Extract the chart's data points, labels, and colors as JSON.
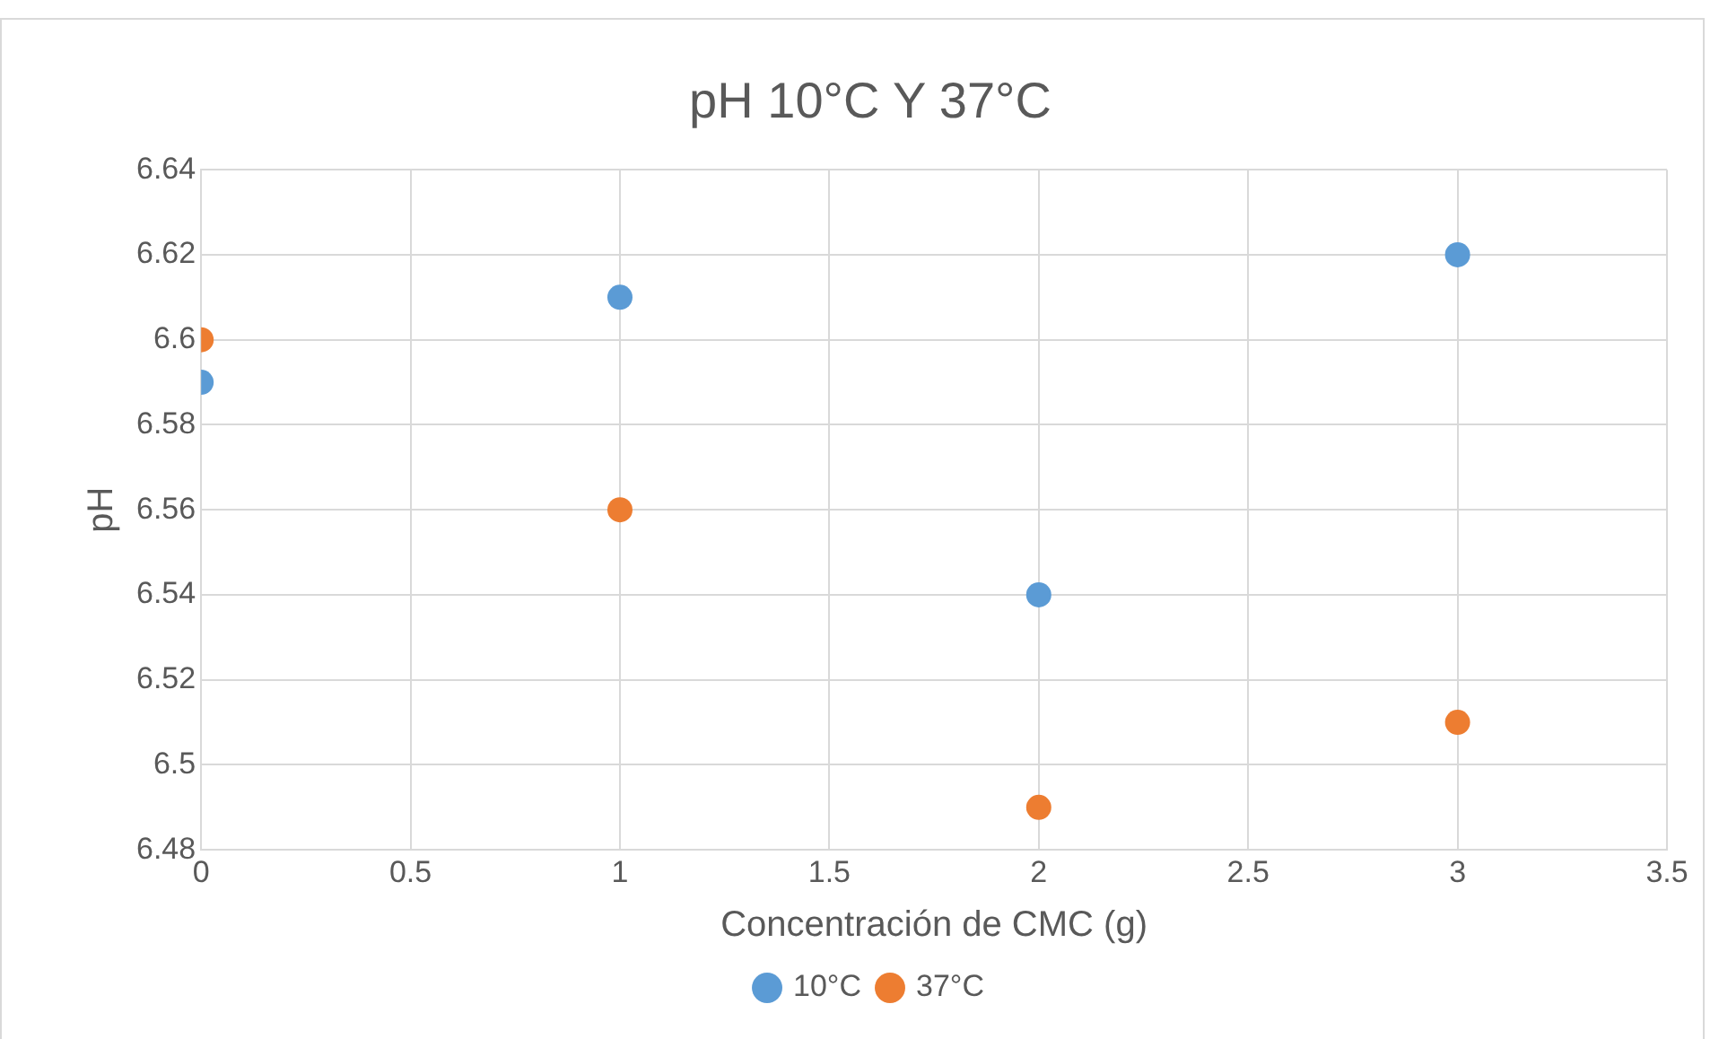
{
  "chart_data": {
    "type": "scatter",
    "title": "pH 10°C Y 37°C",
    "xlabel": "Concentración de CMC (g)",
    "ylabel": "pH",
    "x": [
      0,
      1,
      2,
      3
    ],
    "series": [
      {
        "name": "10°C",
        "color": "#5b9bd5",
        "values": [
          6.59,
          6.61,
          6.54,
          6.62
        ]
      },
      {
        "name": "37°C",
        "color": "#ed7d31",
        "values": [
          6.6,
          6.56,
          6.49,
          6.51
        ]
      }
    ],
    "xlim": [
      0,
      3.5
    ],
    "xticks": [
      0,
      0.5,
      1,
      1.5,
      2,
      2.5,
      3,
      3.5
    ],
    "ylim": [
      6.48,
      6.64
    ],
    "yticks": [
      6.48,
      6.5,
      6.52,
      6.54,
      6.56,
      6.58,
      6.6,
      6.62,
      6.64
    ],
    "grid": true,
    "legend": "bottom",
    "marker": "circle"
  }
}
